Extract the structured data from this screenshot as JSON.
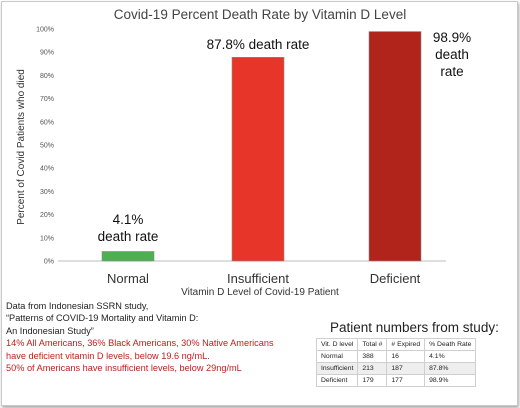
{
  "chart_data": {
    "type": "bar",
    "title": "Covid-19 Percent Death Rate by Vitamin D Level",
    "xlabel": "Vitamin D Level of Covid-19 Patient",
    "ylabel": "Percent of Covid Patients who died",
    "ylim": [
      0,
      100
    ],
    "yticks": [
      "0%",
      "10%",
      "20%",
      "30%",
      "40%",
      "50%",
      "60%",
      "70%",
      "80%",
      "90%",
      "100%"
    ],
    "categories": [
      "Normal",
      "Insufficient",
      "Deficient"
    ],
    "values": [
      4.1,
      87.8,
      98.9
    ],
    "colors": [
      "#4caf50",
      "#e8352a",
      "#b0241c"
    ],
    "data_labels": [
      [
        "4.1%",
        "death rate"
      ],
      [
        "87.8% death rate"
      ],
      [
        "98.9%",
        "death",
        "rate"
      ]
    ],
    "grid": false,
    "legend": "none"
  },
  "notes": {
    "line1": "Data from Indonesian SSRN study,",
    "line2": "“Patterns of COVID-19 Mortality and Vitamin D:",
    "line3": "An Indonesian Study”",
    "red1": "14% All Americans, 36% Black Americans, 30% Native Americans",
    "red2": "have deficient vitamin D levels, below 19.6 ng/mL.",
    "red3": "50% of Americans have insufficient levels, below 29ng/mL"
  },
  "table": {
    "heading": "Patient numbers from study:",
    "headers": [
      "Vit. D level",
      "Total #",
      "# Expired",
      "% Death Rate"
    ],
    "rows": [
      [
        "Normal",
        "388",
        "16",
        "4.1%"
      ],
      [
        "Insufficient",
        "213",
        "187",
        "87.8%"
      ],
      [
        "Deficient",
        "179",
        "177",
        "98.9%"
      ]
    ]
  }
}
